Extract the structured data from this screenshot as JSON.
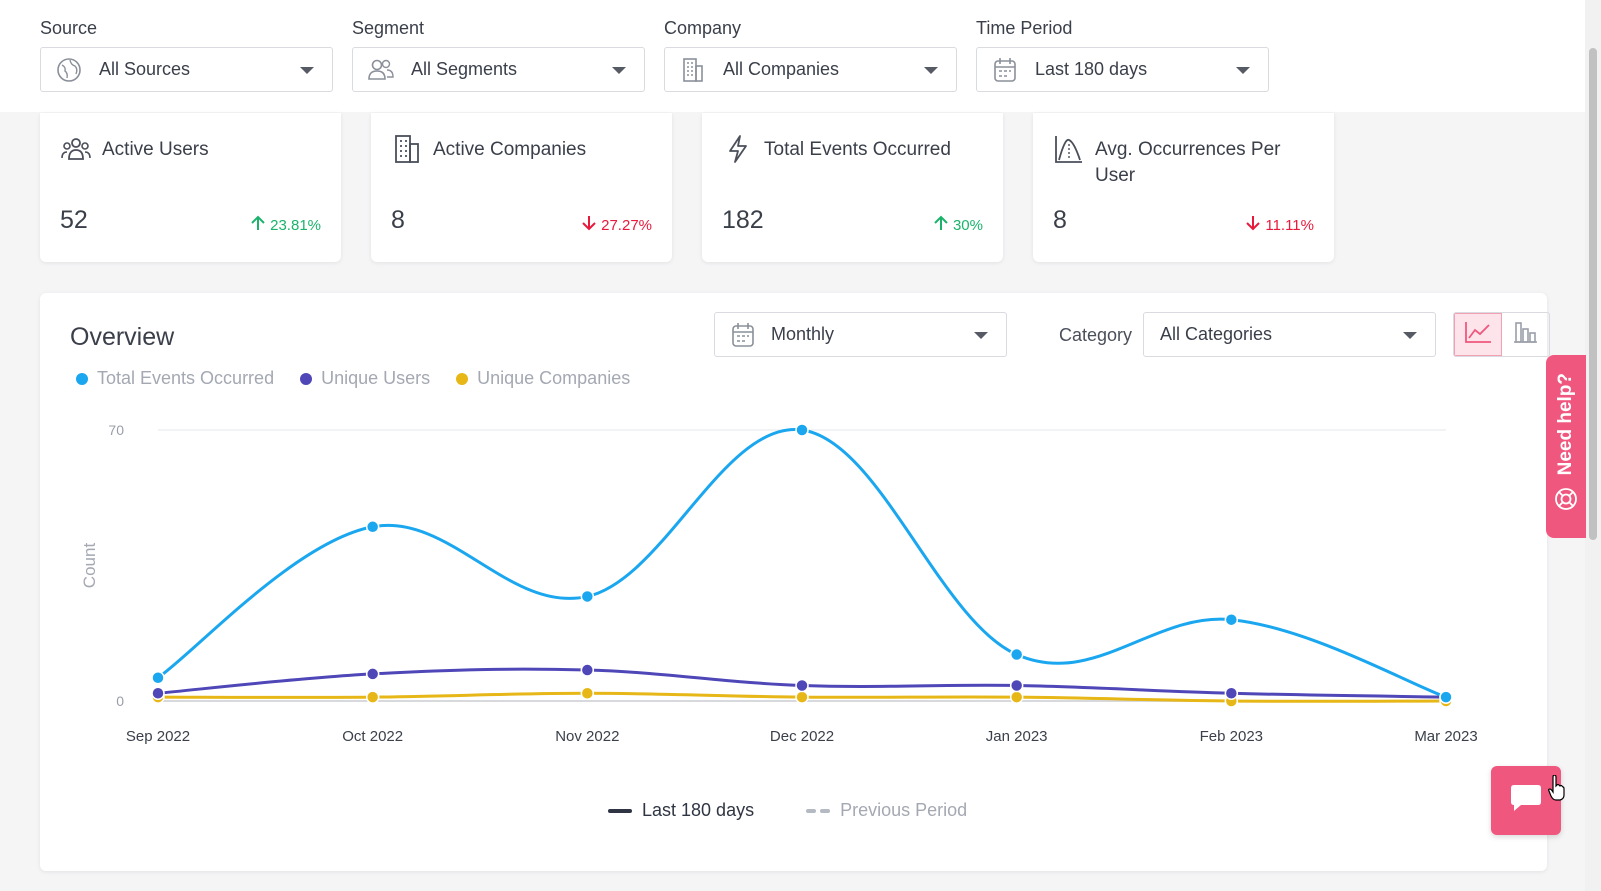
{
  "filters": [
    {
      "label": "Source",
      "value": "All Sources",
      "icon": "globe-icon"
    },
    {
      "label": "Segment",
      "value": "All Segments",
      "icon": "users-icon"
    },
    {
      "label": "Company",
      "value": "All Companies",
      "icon": "building-icon"
    },
    {
      "label": "Time Period",
      "value": "Last 180 days",
      "icon": "calendar-icon"
    }
  ],
  "cards": [
    {
      "title": "Active Users",
      "value": "52",
      "change": "23.81%",
      "direction": "up",
      "icon": "users-group-icon"
    },
    {
      "title": "Active Companies",
      "value": "8",
      "change": "27.27%",
      "direction": "down",
      "icon": "building-icon"
    },
    {
      "title": "Total Events Occurred",
      "value": "182",
      "change": "30%",
      "direction": "up",
      "icon": "lightning-icon"
    },
    {
      "title": "Avg. Occurrences Per User",
      "value": "8",
      "change": "11.11%",
      "direction": "down",
      "icon": "bell-curve-icon"
    }
  ],
  "overview": {
    "title": "Overview",
    "interval": "Monthly",
    "category_label": "Category",
    "category_value": "All Categories",
    "view_mode": "line"
  },
  "legend": {
    "period_current": "Last 180 days",
    "period_previous": "Previous Period"
  },
  "help": {
    "label": "Need help?"
  },
  "colors": {
    "accent": "#f0577e",
    "total_events": "#1aa7ef",
    "unique_users": "#4f47b8",
    "unique_companies": "#e6b716",
    "up": "#1bb36b",
    "down": "#e8193c"
  },
  "chart_data": {
    "type": "line",
    "categories": [
      "Sep 2022",
      "Oct 2022",
      "Nov 2022",
      "Dec 2022",
      "Jan 2023",
      "Feb 2023",
      "Mar 2023"
    ],
    "series": [
      {
        "name": "Total Events Occurred",
        "values": [
          6,
          45,
          27,
          70,
          12,
          21,
          1
        ]
      },
      {
        "name": "Unique Users",
        "values": [
          2,
          7,
          8,
          4,
          4,
          2,
          1
        ]
      },
      {
        "name": "Unique Companies",
        "values": [
          1,
          1,
          2,
          1,
          1,
          0,
          0
        ]
      }
    ],
    "ylabel": "Count",
    "yticks": [
      0,
      70
    ],
    "ylim": [
      0,
      70
    ],
    "grid": true
  }
}
